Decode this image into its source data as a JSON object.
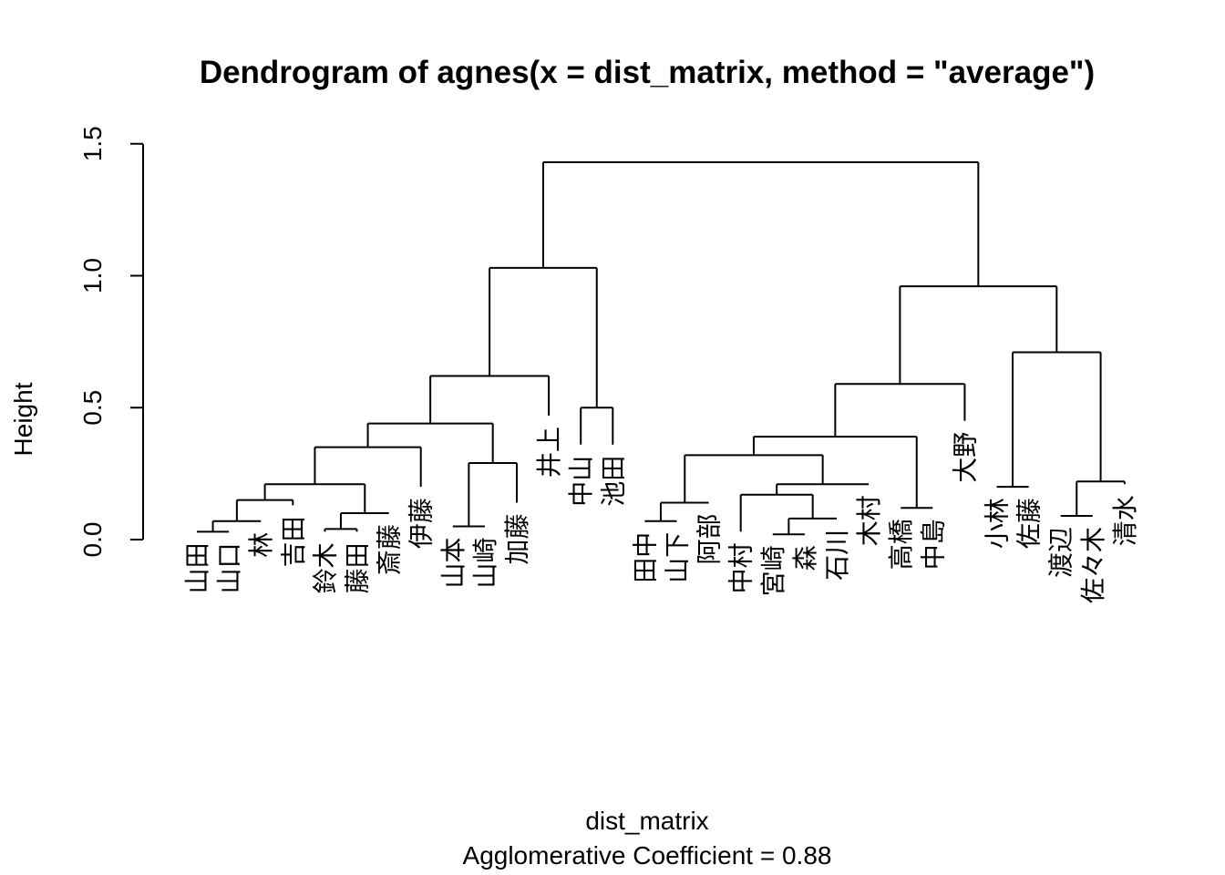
{
  "chart_data": {
    "type": "dendrogram",
    "title": "Dendrogram of  agnes(x = dist_matrix, method = \"average\")",
    "xlabel": "dist_matrix",
    "sublabel": "Agglomerative Coefficient =  0.88",
    "ylabel": "Height",
    "ylim": [
      0,
      1.5
    ],
    "yticks": [
      "0.0",
      "0.5",
      "1.0",
      "1.5"
    ],
    "leaves": [
      {
        "label": "山田",
        "height": 0.03
      },
      {
        "label": "山口",
        "height": 0.03
      },
      {
        "label": "林",
        "height": 0.07
      },
      {
        "label": "吉田",
        "height": 0.13
      },
      {
        "label": "鈴木",
        "height": 0.03
      },
      {
        "label": "藤田",
        "height": 0.03
      },
      {
        "label": "斎藤",
        "height": 0.1
      },
      {
        "label": "伊藤",
        "height": 0.2
      },
      {
        "label": "山本",
        "height": 0.05
      },
      {
        "label": "山崎",
        "height": 0.05
      },
      {
        "label": "加藤",
        "height": 0.14
      },
      {
        "label": "井上",
        "height": 0.47
      },
      {
        "label": "中山",
        "height": 0.36
      },
      {
        "label": "池田",
        "height": 0.36
      },
      {
        "label": "田中",
        "height": 0.07
      },
      {
        "label": "山下",
        "height": 0.07
      },
      {
        "label": "阿部",
        "height": 0.14
      },
      {
        "label": "中村",
        "height": 0.03
      },
      {
        "label": "宮崎",
        "height": 0.02
      },
      {
        "label": "森",
        "height": 0.02
      },
      {
        "label": "石川",
        "height": 0.08
      },
      {
        "label": "木村",
        "height": 0.21
      },
      {
        "label": "高橋",
        "height": 0.12
      },
      {
        "label": "中島",
        "height": 0.12
      },
      {
        "label": "大野",
        "height": 0.45
      },
      {
        "label": "小林",
        "height": 0.2
      },
      {
        "label": "佐藤",
        "height": 0.2
      },
      {
        "label": "渡辺",
        "height": 0.09
      },
      {
        "label": "佐々木",
        "height": 0.09
      },
      {
        "label": "清水",
        "height": 0.21
      }
    ],
    "merges": [
      [
        0,
        1,
        0.03
      ],
      [
        100,
        2,
        0.07
      ],
      [
        101,
        3,
        0.15
      ],
      [
        4,
        5,
        0.04
      ],
      [
        103,
        6,
        0.1
      ],
      [
        102,
        104,
        0.21
      ],
      [
        105,
        7,
        0.35
      ],
      [
        8,
        9,
        0.05
      ],
      [
        107,
        10,
        0.29
      ],
      [
        106,
        108,
        0.44
      ],
      [
        109,
        11,
        0.62
      ],
      [
        12,
        13,
        0.5
      ],
      [
        110,
        111,
        1.03
      ],
      [
        14,
        15,
        0.07
      ],
      [
        113,
        16,
        0.14
      ],
      [
        18,
        19,
        0.02
      ],
      [
        115,
        20,
        0.08
      ],
      [
        17,
        116,
        0.17
      ],
      [
        117,
        21,
        0.21
      ],
      [
        114,
        118,
        0.32
      ],
      [
        22,
        23,
        0.12
      ],
      [
        119,
        120,
        0.39
      ],
      [
        121,
        24,
        0.59
      ],
      [
        25,
        26,
        0.2
      ],
      [
        27,
        28,
        0.09
      ],
      [
        124,
        29,
        0.22
      ],
      [
        123,
        125,
        0.71
      ],
      [
        122,
        126,
        0.96
      ],
      [
        112,
        127,
        1.43
      ]
    ]
  }
}
